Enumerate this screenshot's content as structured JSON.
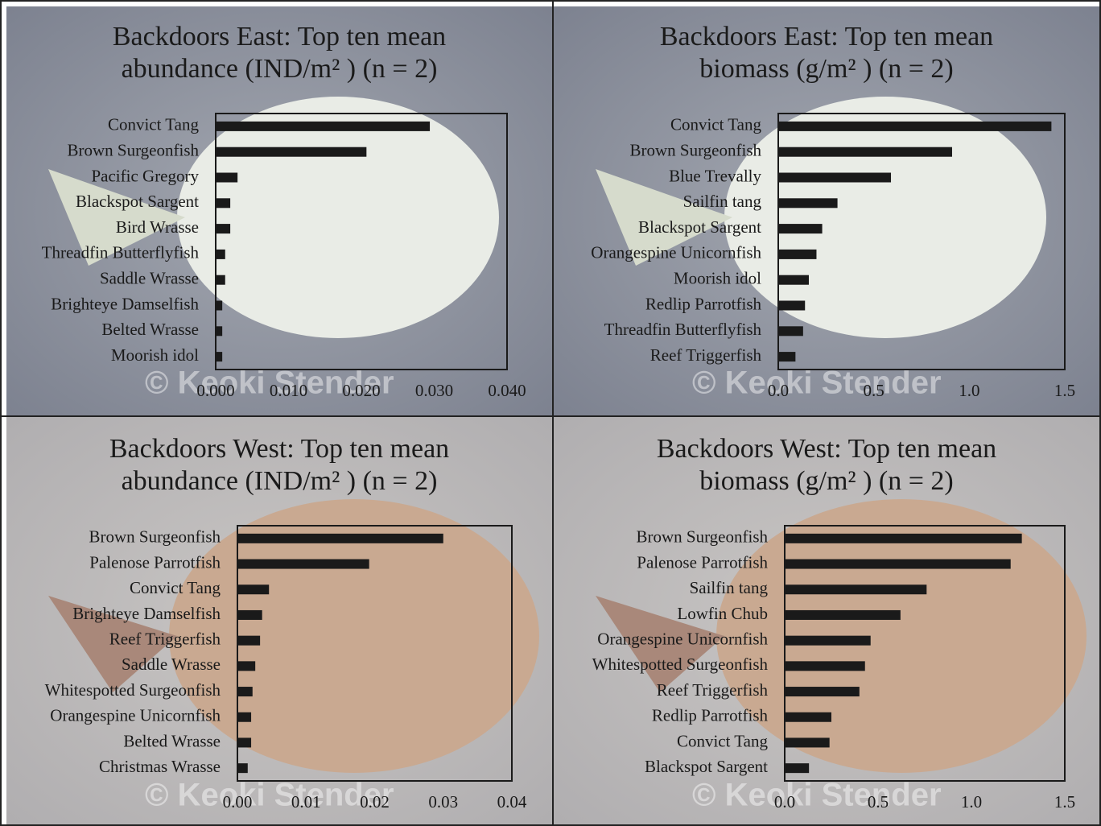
{
  "chart_data": [
    {
      "type": "barh",
      "title": [
        "Backdoors East: Top ten mean",
        "abundance (IND/m² ) (n = 2)"
      ],
      "watermark": "© Keoki Stender",
      "color": "#1a1a1a",
      "categories": [
        "Convict Tang",
        "Brown Surgeonfish",
        "Pacific Gregory",
        "Blackspot Sargent",
        "Bird Wrasse",
        "Threadfin Butterflyfish",
        "Saddle Wrasse",
        "Brighteye Damselfish",
        "Belted Wrasse",
        "Moorish idol"
      ],
      "values": [
        0.0294,
        0.0207,
        0.003,
        0.002,
        0.002,
        0.0013,
        0.0013,
        0.0009,
        0.0009,
        0.0009
      ],
      "xlim": [
        0,
        0.04
      ],
      "xticks": [
        {
          "value": 0,
          "label": "0.000"
        },
        {
          "value": 0.01,
          "label": "0.010"
        },
        {
          "value": 0.02,
          "label": "0.020"
        },
        {
          "value": 0.03,
          "label": "0.030"
        },
        {
          "value": 0.04,
          "label": "0.040"
        }
      ]
    },
    {
      "type": "barh",
      "title": [
        "Backdoors East: Top ten mean",
        "biomass (g/m² ) (n = 2)"
      ],
      "watermark": "© Keoki Stender",
      "color": "#1a1a1a",
      "categories": [
        "Convict Tang",
        "Brown Surgeonfish",
        "Blue Trevally",
        "Sailfin tang",
        "Blackspot Sargent",
        "Orangespine Unicornfish",
        "Moorish idol",
        "Redlip Parrotfish",
        "Threadfin Butterflyfish",
        "Reef Triggerfish"
      ],
      "values": [
        1.43,
        0.91,
        0.59,
        0.31,
        0.23,
        0.2,
        0.16,
        0.14,
        0.13,
        0.09
      ],
      "xlim": [
        0,
        1.5
      ],
      "xticks": [
        {
          "value": 0,
          "label": "0.0"
        },
        0.5,
        {
          "value": 1,
          "label": "1.0"
        },
        1.5
      ]
    },
    {
      "type": "barh",
      "title": [
        "Backdoors West: Top ten mean",
        "abundance (IND/m² ) (n = 2)"
      ],
      "watermark": "© Keoki Stender",
      "color": "#1a1a1a",
      "categories": [
        "Brown Surgeonfish",
        "Palenose Parrotfish",
        "Convict Tang",
        "Brighteye Damselfish",
        "Reef Triggerfish",
        "Saddle Wrasse",
        "Whitespotted Surgeonfish",
        "Orangespine Unicornfish",
        "Belted Wrasse",
        "Christmas Wrasse"
      ],
      "values": [
        0.03,
        0.0192,
        0.0046,
        0.0036,
        0.0033,
        0.0026,
        0.0022,
        0.002,
        0.002,
        0.0015
      ],
      "xlim": [
        0,
        0.04
      ],
      "xticks": [
        {
          "value": 0,
          "label": "0.00"
        },
        0.01,
        {
          "value": 0.02,
          "label": "0.02"
        },
        0.03,
        0.04
      ]
    },
    {
      "type": "barh",
      "title": [
        "Backdoors West: Top ten mean",
        "biomass (g/m² ) (n = 2)"
      ],
      "watermark": "© Keoki Stender",
      "color": "#1a1a1a",
      "categories": [
        "Brown Surgeonfish",
        "Palenose Parrotfish",
        "Sailfin tang",
        "Lowfin Chub",
        "Orangespine Unicornfish",
        "Whitespotted Surgeonfish",
        "Reef Triggerfish",
        "Redlip Parrotfish",
        "Convict Tang",
        "Blackspot Sargent"
      ],
      "values": [
        1.27,
        1.21,
        0.76,
        0.62,
        0.46,
        0.43,
        0.4,
        0.25,
        0.24,
        0.13
      ],
      "xlim": [
        0,
        1.5
      ],
      "xticks": [
        {
          "value": 0,
          "label": "0.0"
        },
        0.5,
        {
          "value": 1,
          "label": "1.0"
        },
        1.5
      ]
    }
  ]
}
